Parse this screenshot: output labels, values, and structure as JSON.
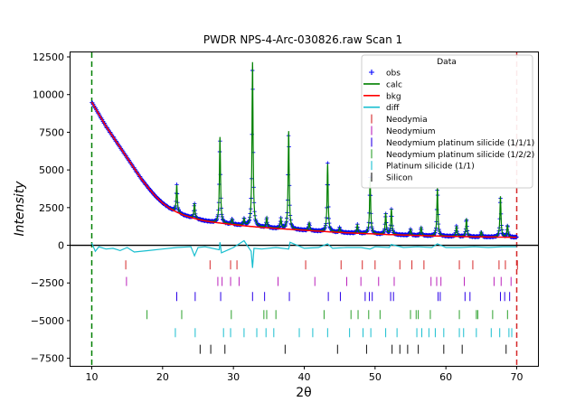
{
  "chart_data": {
    "type": "line",
    "title": "PWDR NPS-4-Arc-030826.raw Scan 1",
    "xlabel": "2θ",
    "ylabel": "Intensity",
    "xlim": [
      7,
      73
    ],
    "ylim": [
      -8000,
      12800
    ],
    "x_ticks": [
      10,
      20,
      30,
      40,
      50,
      60,
      70
    ],
    "y_ticks": [
      -7500,
      -5000,
      -2500,
      0,
      2500,
      5000,
      7500,
      10000,
      12500
    ],
    "x_tick_labels": [
      "10",
      "20",
      "30",
      "40",
      "50",
      "60",
      "70"
    ],
    "y_tick_labels": [
      "−7500",
      "−5000",
      "−2500",
      "0",
      "2500",
      "5000",
      "7500",
      "10000",
      "12500"
    ],
    "grid": false,
    "legend_position": "top-right",
    "legend_title": "Data",
    "limit_lines": {
      "lower": {
        "x": 10,
        "color": "#008000"
      },
      "upper": {
        "x": 70,
        "color": "#d62728"
      }
    },
    "background": {
      "x": [
        10,
        11,
        12,
        13,
        14,
        15,
        16,
        17,
        18,
        19,
        20,
        21,
        22,
        23,
        24,
        25,
        26,
        27,
        28,
        29,
        30,
        32,
        34,
        36,
        38,
        40,
        42,
        44,
        46,
        48,
        50,
        52,
        54,
        56,
        58,
        60,
        62,
        64,
        66,
        68,
        70
      ],
      "y": [
        9500,
        8700,
        7900,
        7200,
        6500,
        5800,
        5100,
        4400,
        3800,
        3250,
        2800,
        2450,
        2200,
        2000,
        1850,
        1720,
        1620,
        1540,
        1480,
        1420,
        1370,
        1270,
        1190,
        1120,
        1060,
        1000,
        940,
        880,
        830,
        790,
        750,
        710,
        680,
        650,
        620,
        600,
        580,
        560,
        550,
        540,
        530
      ]
    },
    "peaks": [
      {
        "x": 22.0,
        "height": 1800
      },
      {
        "x": 24.5,
        "height": 1000
      },
      {
        "x": 28.1,
        "height": 5700
      },
      {
        "x": 29.8,
        "height": 350
      },
      {
        "x": 31.5,
        "height": 450
      },
      {
        "x": 32.7,
        "height": 10900
      },
      {
        "x": 34.7,
        "height": 650
      },
      {
        "x": 36.7,
        "height": 650
      },
      {
        "x": 37.8,
        "height": 6500
      },
      {
        "x": 40.7,
        "height": 500
      },
      {
        "x": 43.3,
        "height": 4500
      },
      {
        "x": 45.0,
        "height": 300
      },
      {
        "x": 47.5,
        "height": 550
      },
      {
        "x": 49.3,
        "height": 3700
      },
      {
        "x": 51.5,
        "height": 1400
      },
      {
        "x": 52.3,
        "height": 1700
      },
      {
        "x": 55.0,
        "height": 400
      },
      {
        "x": 56.5,
        "height": 550
      },
      {
        "x": 58.8,
        "height": 3200
      },
      {
        "x": 61.5,
        "height": 700
      },
      {
        "x": 62.9,
        "height": 1200
      },
      {
        "x": 65.0,
        "height": 350
      },
      {
        "x": 67.7,
        "height": 2700
      },
      {
        "x": 68.7,
        "height": 800
      }
    ],
    "series": [
      {
        "name": "obs",
        "color": "#0000ff",
        "marker": "+"
      },
      {
        "name": "calc",
        "color": "#008000",
        "style": "line"
      },
      {
        "name": "bkg",
        "color": "#ff0000",
        "style": "line"
      },
      {
        "name": "diff",
        "color": "#17becf",
        "style": "line",
        "offset": 0,
        "x": [
          10,
          10.5,
          11,
          12,
          13,
          14,
          15,
          16,
          18,
          20,
          22,
          24,
          24.5,
          25,
          26,
          28,
          28.1,
          28.3,
          30,
          31.5,
          32.5,
          32.7,
          32.9,
          34,
          36,
          37.8,
          38,
          40,
          42,
          43.3,
          44,
          46,
          48,
          49.3,
          50,
          52,
          52.3,
          54,
          56,
          58,
          58.8,
          60,
          62,
          64,
          66,
          68,
          70
        ],
        "y": [
          150,
          -400,
          -100,
          -250,
          -200,
          -350,
          -150,
          -450,
          -350,
          -250,
          -150,
          -100,
          -700,
          -150,
          -100,
          -300,
          200,
          -500,
          -150,
          300,
          -400,
          -1500,
          -200,
          -250,
          -150,
          -250,
          200,
          -200,
          -150,
          100,
          -200,
          -150,
          -150,
          -250,
          -100,
          -150,
          50,
          -150,
          -100,
          -150,
          100,
          -150,
          -150,
          -100,
          -150,
          -100,
          -100
        ]
      }
    ],
    "reflections": [
      {
        "name": "Neodymia",
        "color": "#d62728",
        "y": -1300,
        "x": [
          14.8,
          26.7,
          29.6,
          30.5,
          40.2,
          45.2,
          48.2,
          50.0,
          53.5,
          55.2,
          56.9,
          61.9,
          63.8,
          67.5,
          68.4,
          70.1
        ]
      },
      {
        "name": "Neodymium",
        "color": "#bb22bb",
        "y": -2400,
        "x": [
          14.9,
          27.8,
          28.4,
          29.6,
          30.8,
          36.3,
          41.5,
          46.0,
          48.0,
          50.5,
          52.7,
          57.9,
          58.7,
          59.3,
          62.6,
          66.8,
          67.8,
          69.2
        ]
      },
      {
        "name": "Neodymium platinum silicide (1/1/1)",
        "color": "#2a00e8",
        "y": -3400,
        "x": [
          22.0,
          24.6,
          28.2,
          32.7,
          34.4,
          37.9,
          43.4,
          45.1,
          48.6,
          49.2,
          49.6,
          52.2,
          52.6,
          58.9,
          59.2,
          62.7,
          63.4,
          67.7,
          68.3,
          69.0
        ]
      },
      {
        "name": "Neodymium platinum silicide (1/2/2)",
        "color": "#2ca02c",
        "y": -4600,
        "x": [
          17.8,
          22.7,
          29.7,
          34.3,
          34.7,
          36.0,
          42.8,
          46.6,
          47.6,
          49.1,
          50.7,
          55.0,
          55.8,
          56.1,
          57.8,
          61.9,
          64.3,
          64.5,
          66.6,
          68.7
        ]
      },
      {
        "name": "Platinum silicide (1/1)",
        "color": "#17becf",
        "y": -5800,
        "x": [
          21.8,
          24.6,
          28.6,
          29.6,
          31.5,
          33.3,
          34.6,
          35.7,
          39.3,
          41.2,
          43.3,
          46.4,
          48.3,
          49.4,
          51.5,
          53.1,
          55.9,
          56.6,
          57.6,
          58.5,
          59.7,
          61.9,
          62.5,
          64.3,
          66.4,
          67.6,
          68.9,
          69.3
        ]
      },
      {
        "name": "Silicon",
        "color": "#111111",
        "y": -6900,
        "x": [
          25.3,
          26.8,
          28.8,
          37.3,
          44.7,
          48.8,
          52.4,
          53.5,
          54.6,
          56.1,
          59.7,
          62.3,
          68.5
        ]
      }
    ]
  }
}
